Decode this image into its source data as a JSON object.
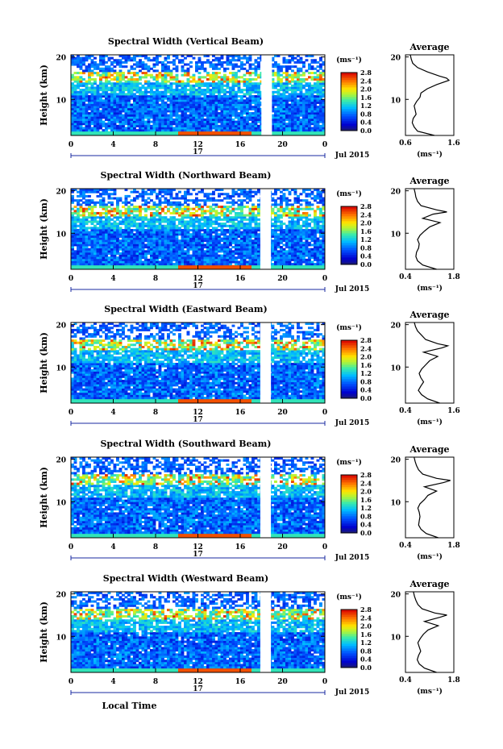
{
  "chart_data": [
    {
      "type": "heatmap",
      "title": "Spectral Width (Vertical Beam)",
      "ylabel": "Height (km)",
      "ylim": [
        1.5,
        20.5
      ],
      "yticks": [
        "20",
        "10"
      ],
      "xlim": [
        0,
        24
      ],
      "xticks": [
        "0",
        "4",
        "8",
        "12",
        "16",
        "20",
        "0"
      ],
      "day_label": "17",
      "date_label": "Jul 2015",
      "data_gap_hours": [
        18.0,
        19.0
      ],
      "colorbar": {
        "unit": "(ms⁻¹)",
        "ticks": [
          "2.8",
          "2.4",
          "2.0",
          "1.6",
          "1.2",
          "0.8",
          "0.4",
          "0.0"
        ],
        "range": [
          0.0,
          2.8
        ]
      },
      "profile": {
        "title": "Average",
        "xlabel": "(ms⁻¹)",
        "xticks": [
          "0.6",
          "1.6"
        ],
        "xlim": [
          0.6,
          1.6
        ],
        "yticks": [
          "20",
          "10"
        ],
        "heights": [
          1.5,
          2.5,
          3.5,
          4.5,
          5.5,
          6.5,
          7.5,
          8.5,
          9.5,
          10.5,
          11.5,
          12.5,
          13.5,
          14.5,
          15.0,
          15.5,
          16.5,
          17.5,
          18.5,
          19.5,
          20.5
        ],
        "values": [
          1.2,
          0.85,
          0.78,
          0.74,
          0.76,
          0.82,
          0.8,
          0.78,
          0.83,
          0.9,
          0.92,
          1.05,
          1.25,
          1.5,
          1.45,
          1.3,
          1.05,
          0.85,
          0.75,
          0.72,
          0.7
        ]
      }
    },
    {
      "type": "heatmap",
      "title": "Spectral Width (Northward Beam)",
      "ylabel": "Height (km)",
      "ylim": [
        1.5,
        20.5
      ],
      "yticks": [
        "20",
        "10"
      ],
      "xlim": [
        0,
        24
      ],
      "xticks": [
        "0",
        "4",
        "8",
        "12",
        "16",
        "20",
        "0"
      ],
      "day_label": "17",
      "date_label": "Jul 2015",
      "data_gap_hours": [
        17.9,
        18.9
      ],
      "colorbar": {
        "unit": "(ms⁻¹)",
        "ticks": [
          "2.8",
          "2.4",
          "2.0",
          "1.6",
          "1.2",
          "0.8",
          "0.4",
          "0.0"
        ],
        "range": [
          0.0,
          2.8
        ]
      },
      "profile": {
        "title": "Average",
        "xlabel": "(ms⁻¹)",
        "xticks": [
          "0.4",
          "1.8"
        ],
        "xlim": [
          0.4,
          1.8
        ],
        "yticks": [
          "20",
          "10"
        ],
        "heights": [
          1.5,
          2.5,
          3.5,
          4.5,
          5.5,
          6.5,
          7.5,
          8.5,
          9.5,
          10.5,
          11.5,
          12.5,
          13.5,
          14.5,
          15.0,
          15.5,
          16.5,
          17.5,
          18.5,
          19.5,
          20.5
        ],
        "values": [
          1.3,
          0.9,
          0.75,
          0.7,
          0.72,
          0.78,
          0.8,
          0.75,
          0.82,
          0.95,
          1.1,
          1.4,
          0.9,
          1.2,
          1.6,
          1.3,
          0.85,
          0.75,
          0.7,
          0.68,
          0.65
        ]
      }
    },
    {
      "type": "heatmap",
      "title": "Spectral Width (Eastward Beam)",
      "ylabel": "Height (km)",
      "ylim": [
        1.5,
        20.5
      ],
      "yticks": [
        "20",
        "10"
      ],
      "xlim": [
        0,
        24
      ],
      "xticks": [
        "0",
        "4",
        "8",
        "12",
        "16",
        "20",
        "0"
      ],
      "day_label": "17",
      "date_label": "Jul 2015",
      "data_gap_hours": [
        17.9,
        18.9
      ],
      "colorbar": {
        "unit": "(ms⁻¹)",
        "ticks": [
          "2.8",
          "2.4",
          "2.0",
          "1.6",
          "1.2",
          "0.8",
          "0.4",
          "0.0"
        ],
        "range": [
          0.0,
          2.8
        ]
      },
      "profile": {
        "title": "Average",
        "xlabel": "(ms⁻¹)",
        "xticks": [
          "0.4",
          "1.6"
        ],
        "xlim": [
          0.4,
          1.6
        ],
        "yticks": [
          "20",
          "10"
        ],
        "heights": [
          1.5,
          2.5,
          3.5,
          4.5,
          5.5,
          6.5,
          7.5,
          8.5,
          9.5,
          10.5,
          11.5,
          12.5,
          13.5,
          14.5,
          15.0,
          15.5,
          16.5,
          17.5,
          18.5,
          19.5,
          20.5
        ],
        "values": [
          1.25,
          0.95,
          0.8,
          0.72,
          0.78,
          0.85,
          0.78,
          0.74,
          0.8,
          0.9,
          1.0,
          1.2,
          0.85,
          1.3,
          1.45,
          1.2,
          0.9,
          0.8,
          0.7,
          0.65,
          0.62
        ]
      }
    },
    {
      "type": "heatmap",
      "title": "Spectral Width (Southward Beam)",
      "ylabel": "Height (km)",
      "ylim": [
        1.5,
        20.5
      ],
      "yticks": [
        "20",
        "10"
      ],
      "xlim": [
        0,
        24
      ],
      "xticks": [
        "0",
        "4",
        "8",
        "12",
        "16",
        "20",
        "0"
      ],
      "day_label": "17",
      "date_label": "Jul 2015",
      "data_gap_hours": [
        17.9,
        18.9
      ],
      "colorbar": {
        "unit": "(ms⁻¹)",
        "ticks": [
          "2.8",
          "2.4",
          "2.0",
          "1.6",
          "1.2",
          "0.8",
          "0.4",
          "0.0"
        ],
        "range": [
          0.0,
          2.8
        ]
      },
      "profile": {
        "title": "Average",
        "xlabel": "(ms⁻¹)",
        "xticks": [
          "0.4",
          "1.8"
        ],
        "xlim": [
          0.4,
          1.8
        ],
        "yticks": [
          "20",
          "10"
        ],
        "heights": [
          1.5,
          2.5,
          3.5,
          4.5,
          5.5,
          6.5,
          7.5,
          8.5,
          9.5,
          10.5,
          11.5,
          12.5,
          13.5,
          14.5,
          15.0,
          15.5,
          16.5,
          17.5,
          18.5,
          19.5,
          20.5
        ],
        "values": [
          1.35,
          1.0,
          0.85,
          0.78,
          0.8,
          0.82,
          0.8,
          0.76,
          0.82,
          0.95,
          1.05,
          1.3,
          0.95,
          1.5,
          1.7,
          1.3,
          0.9,
          0.78,
          0.72,
          0.68,
          0.65
        ]
      }
    },
    {
      "type": "heatmap",
      "title": "Spectral Width (Westward Beam)",
      "ylabel": "Height (km)",
      "ylim": [
        1.5,
        20.5
      ],
      "yticks": [
        "20",
        "10"
      ],
      "xlim": [
        0,
        24
      ],
      "xticks": [
        "0",
        "4",
        "8",
        "12",
        "16",
        "20",
        "0"
      ],
      "day_label": "17",
      "date_label": "Jul 2015",
      "data_gap_hours": [
        17.9,
        18.9
      ],
      "colorbar": {
        "unit": "(ms⁻¹)",
        "ticks": [
          "2.8",
          "2.4",
          "2.0",
          "1.6",
          "1.2",
          "0.8",
          "0.4",
          "0.0"
        ],
        "range": [
          0.0,
          2.8
        ]
      },
      "profile": {
        "title": "Average",
        "xlabel": "(ms⁻¹)",
        "xticks": [
          "0.4",
          "1.8"
        ],
        "xlim": [
          0.4,
          1.8
        ],
        "yticks": [
          "20",
          "10"
        ],
        "heights": [
          1.5,
          2.5,
          3.5,
          4.5,
          5.5,
          6.5,
          7.5,
          8.5,
          9.5,
          10.5,
          11.5,
          12.5,
          13.5,
          14.5,
          15.0,
          15.5,
          16.5,
          17.5,
          18.5,
          19.5,
          20.5
        ],
        "values": [
          1.3,
          0.95,
          0.8,
          0.74,
          0.78,
          0.84,
          0.8,
          0.76,
          0.83,
          0.92,
          1.05,
          1.35,
          0.95,
          1.4,
          1.6,
          1.25,
          0.88,
          0.76,
          0.7,
          0.66,
          0.63
        ]
      }
    }
  ],
  "figure": {
    "bottom_xlabel": "Local Time"
  }
}
